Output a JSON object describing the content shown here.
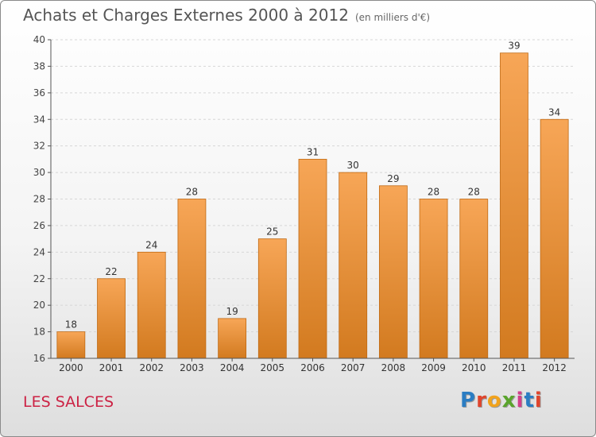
{
  "title": "Achats et Charges Externes 2000 à 2012",
  "unit": "(en milliers d'€)",
  "location": "LES SALCES",
  "brand": {
    "letters": [
      "P",
      "r",
      "o",
      "x",
      "i",
      "t",
      "i"
    ],
    "colors": [
      "#2b7dc3",
      "#e0452c",
      "#f1a31d",
      "#5aa42c",
      "#d23f8a",
      "#2b7dc3",
      "#e0452c"
    ]
  },
  "colors": {
    "bar_top": "#f7a657",
    "bar_bottom": "#d27a1f",
    "bar_edge": "#c06a14",
    "axis": "#555555",
    "grid": "#d6d6d6"
  },
  "chart_data": {
    "type": "bar",
    "title": "Achats et Charges Externes 2000 à 2012",
    "ylabel": "",
    "xlabel": "",
    "categories": [
      "2000",
      "2001",
      "2002",
      "2003",
      "2004",
      "2005",
      "2006",
      "2007",
      "2008",
      "2009",
      "2010",
      "2011",
      "2012"
    ],
    "values": [
      18,
      22,
      24,
      28,
      19,
      25,
      31,
      30,
      29,
      28,
      28,
      39,
      34
    ],
    "ylim": [
      16,
      40
    ],
    "yticks": [
      16,
      18,
      20,
      22,
      24,
      26,
      28,
      30,
      32,
      34,
      36,
      38,
      40
    ],
    "grid": true
  }
}
